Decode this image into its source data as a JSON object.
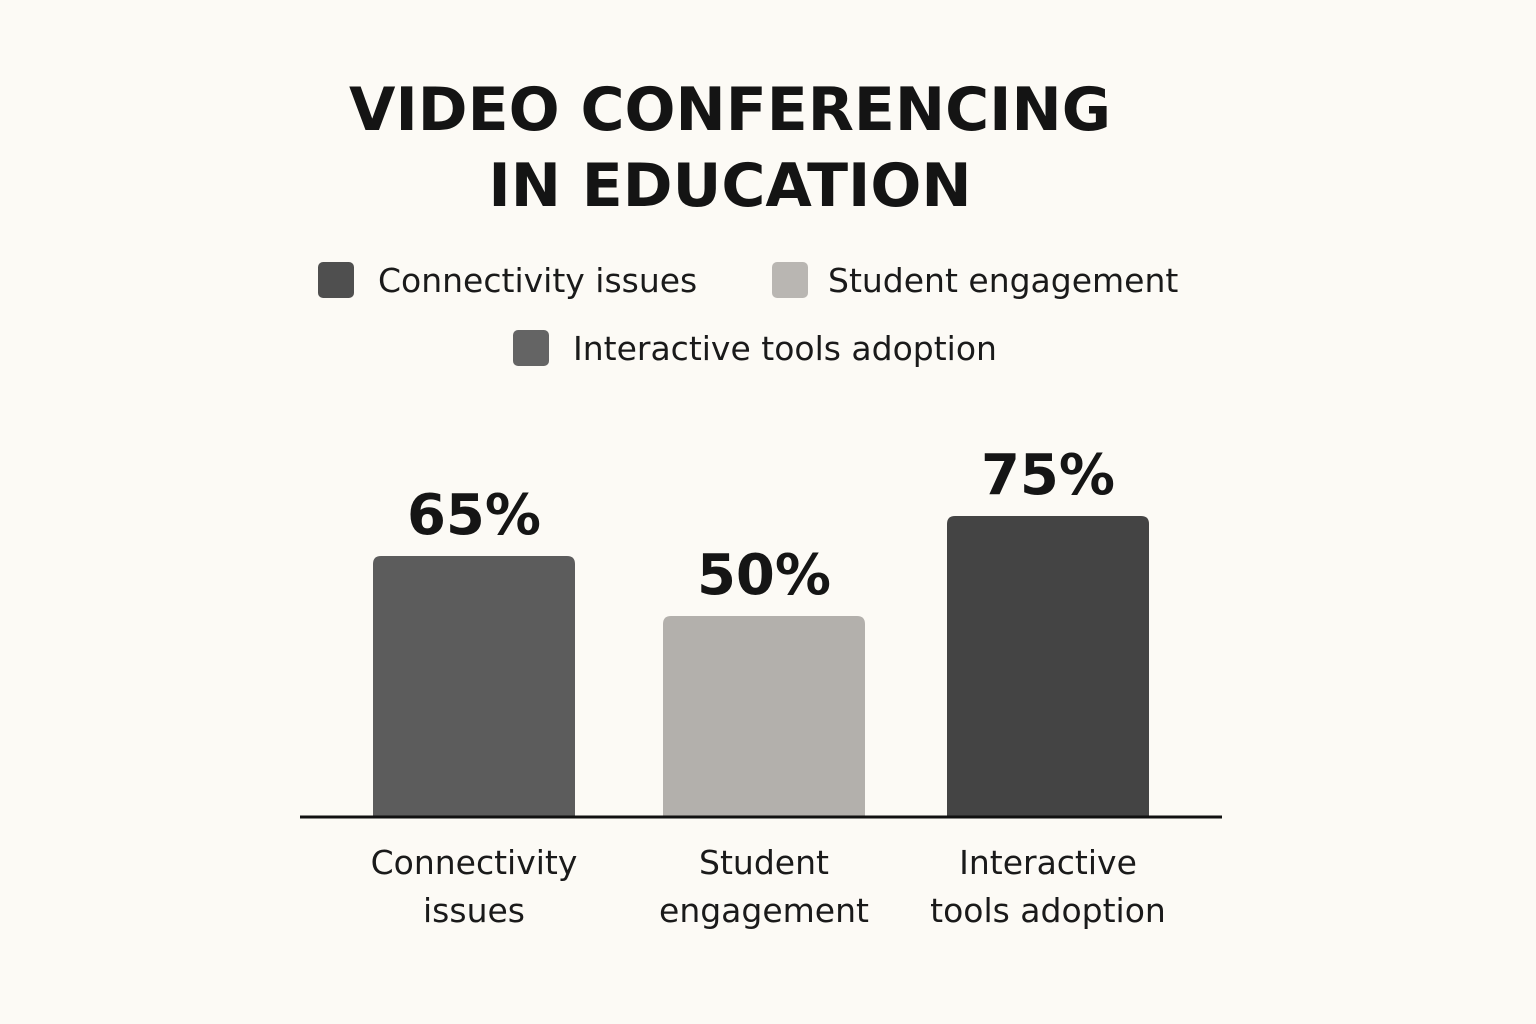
{
  "chart_data": {
    "type": "bar",
    "title": "VIDEO CONFERENCING IN EDUCATION",
    "title_lines": [
      "VIDEO CONFERENCING",
      "IN EDUCATION"
    ],
    "categories": [
      "Connectivity issues",
      "Student engagement",
      "Interactive tools adoption"
    ],
    "category_label_lines": [
      [
        "Connectivity",
        "issues"
      ],
      [
        "Student",
        "engagement"
      ],
      [
        "Interactive",
        "tools adoption"
      ]
    ],
    "values": [
      65,
      50,
      75
    ],
    "value_labels": [
      "65%",
      "50%",
      "75%"
    ],
    "bar_colors": [
      "#5c5c5c",
      "#b3b0ac",
      "#444444"
    ],
    "legend": [
      {
        "label": "Connectivity issues",
        "color": "#4f4f4f"
      },
      {
        "label": "Student engagement",
        "color": "#b9b6b2"
      },
      {
        "label": "Interactive tools adoption",
        "color": "#646464"
      }
    ],
    "legend_position": "top",
    "xlabel": "",
    "ylabel": "",
    "ylim": [
      0,
      100
    ],
    "grid": false
  }
}
